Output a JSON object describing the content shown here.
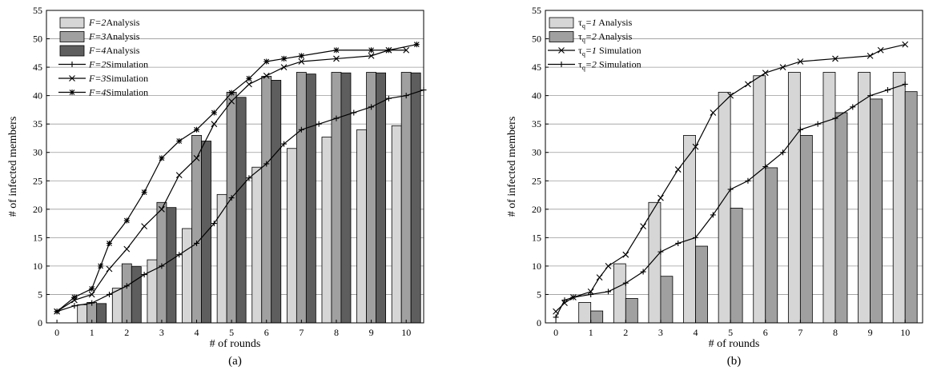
{
  "chart_data": [
    {
      "type": "bar",
      "caption": "(a)",
      "xlabel": "# of rounds",
      "ylabel": "# of infected members",
      "xlim": [
        -0.3,
        10.5
      ],
      "ylim": [
        0,
        55
      ],
      "xticks": [
        0,
        1,
        2,
        3,
        4,
        5,
        6,
        7,
        8,
        9,
        10
      ],
      "yticks": [
        0,
        5,
        10,
        15,
        20,
        25,
        30,
        35,
        40,
        45,
        50,
        55
      ],
      "grid": "horizontal",
      "legend_position": "top-left",
      "categories": [
        1,
        2,
        3,
        4,
        5,
        6,
        7,
        8,
        9,
        10
      ],
      "bar_series": [
        {
          "name_italic": "F=2",
          "name_suffix": "Analysis",
          "color": "#d6d6d6",
          "values": [
            3.2,
            6.1,
            11.1,
            16.6,
            22.6,
            27.4,
            30.7,
            32.7,
            34.0,
            34.7
          ]
        },
        {
          "name_italic": "F=3",
          "name_suffix": "Analysis",
          "color": "#a0a0a0",
          "values": [
            3.6,
            10.4,
            21.2,
            33.0,
            40.6,
            43.4,
            44.1,
            44.1,
            44.1,
            44.1
          ]
        },
        {
          "name_italic": "F=4",
          "name_suffix": "Analysis",
          "color": "#5e5e5e",
          "values": [
            3.4,
            9.9,
            20.3,
            32.0,
            39.7,
            42.7,
            43.8,
            44.0,
            44.0,
            44.0
          ]
        }
      ],
      "line_series": [
        {
          "name_italic": "F=2",
          "name_suffix": "Simulation",
          "marker": "plus",
          "x": [
            0,
            0.5,
            1,
            1.5,
            2,
            2.5,
            3,
            3.5,
            4,
            4.5,
            5,
            5.5,
            6,
            6.5,
            7,
            7.5,
            8,
            8.5,
            9,
            9.5,
            10,
            10.5
          ],
          "y": [
            2,
            3,
            3.5,
            5,
            6.5,
            8.5,
            10,
            12,
            14,
            17.5,
            22,
            25.5,
            28,
            31.5,
            34,
            35,
            36,
            37,
            38,
            39.5,
            40,
            41
          ]
        },
        {
          "name_italic": "F=3",
          "name_suffix": "Simulation",
          "marker": "x",
          "x": [
            0,
            0.5,
            1,
            1.5,
            2,
            2.5,
            3,
            3.5,
            4,
            4.5,
            5,
            5.5,
            6,
            6.5,
            7,
            8,
            9,
            9.5,
            10
          ],
          "y": [
            2,
            4,
            5,
            9.5,
            13,
            17,
            20,
            26,
            29,
            35,
            39,
            42,
            43.5,
            45,
            46,
            46.5,
            47,
            48,
            48
          ]
        },
        {
          "name_italic": "F=4",
          "name_suffix": "Simulation",
          "marker": "asterisk",
          "x": [
            0,
            0.5,
            1,
            1.25,
            1.5,
            2,
            2.5,
            3,
            3.5,
            4,
            4.5,
            5,
            5.5,
            6,
            6.5,
            7,
            8,
            9,
            9.5,
            10.3
          ],
          "y": [
            2,
            4.5,
            6,
            10,
            14,
            18,
            23,
            29,
            32,
            34,
            37,
            40.5,
            43,
            46,
            46.5,
            47,
            48,
            48,
            48,
            49
          ]
        }
      ]
    },
    {
      "type": "bar",
      "caption": "(b)",
      "xlabel": "# of rounds",
      "ylabel": "# of infected members",
      "xlim": [
        -0.3,
        10.5
      ],
      "ylim": [
        0,
        55
      ],
      "xticks": [
        0,
        1,
        2,
        3,
        4,
        5,
        6,
        7,
        8,
        9,
        10
      ],
      "yticks": [
        0,
        5,
        10,
        15,
        20,
        25,
        30,
        35,
        40,
        45,
        50,
        55
      ],
      "grid": "horizontal",
      "legend_position": "top-left",
      "categories": [
        1,
        2,
        3,
        4,
        5,
        6,
        7,
        8,
        9,
        10
      ],
      "bar_series": [
        {
          "name_prefix": "τ",
          "name_sub": "q",
          "name_italic": "=1",
          "name_suffix": " Analysis",
          "color": "#d6d6d6",
          "values": [
            3.6,
            10.4,
            21.2,
            33.0,
            40.6,
            43.5,
            44.1,
            44.1,
            44.1,
            44.1
          ]
        },
        {
          "name_prefix": "τ",
          "name_sub": "q",
          "name_italic": "=2",
          "name_suffix": " Analysis",
          "color": "#a0a0a0",
          "values": [
            2.1,
            4.3,
            8.2,
            13.5,
            20.2,
            27.3,
            33.0,
            37.0,
            39.4,
            40.7
          ]
        }
      ],
      "line_series": [
        {
          "name_prefix": "τ",
          "name_sub": "q",
          "name_italic": "=1",
          "name_suffix": " Simulation",
          "marker": "x",
          "x": [
            0,
            0.25,
            0.5,
            1,
            1.25,
            1.5,
            2,
            2.5,
            3,
            3.5,
            4,
            4.5,
            5,
            5.5,
            6,
            6.5,
            7,
            8,
            9,
            9.3,
            10
          ],
          "y": [
            2,
            3.5,
            4.5,
            5.5,
            8,
            10,
            12,
            17,
            22,
            27,
            31,
            37,
            40,
            42,
            44,
            45,
            46,
            46.5,
            47,
            48,
            49
          ]
        },
        {
          "name_prefix": "τ",
          "name_sub": "q",
          "name_italic": "=2",
          "name_suffix": " Simulation",
          "marker": "plus",
          "x": [
            0,
            0.25,
            0.5,
            1,
            1.5,
            2,
            2.5,
            3,
            3.5,
            4,
            4.5,
            5,
            5.5,
            6,
            6.5,
            7,
            7.5,
            8,
            8.5,
            9,
            9.5,
            10
          ],
          "y": [
            1,
            4,
            4.5,
            5,
            5.5,
            7,
            9,
            12.5,
            14,
            15,
            19,
            23.5,
            25,
            27.5,
            30,
            34,
            35,
            36,
            38,
            40,
            41,
            42
          ]
        }
      ]
    }
  ]
}
